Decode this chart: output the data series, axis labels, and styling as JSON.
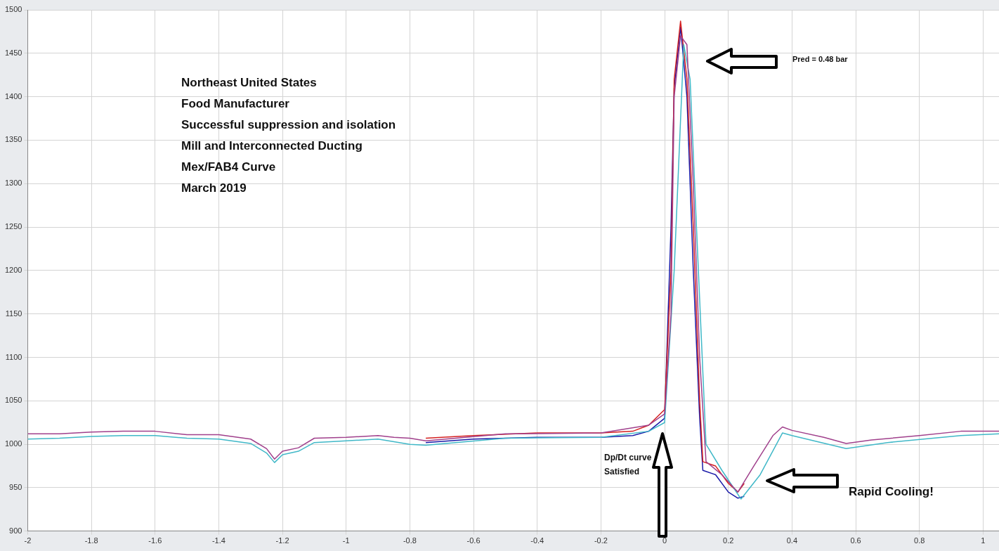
{
  "chart_data": {
    "type": "line",
    "xlim": [
      -2,
      1.05
    ],
    "xticks": [
      -2,
      -1.8,
      -1.6,
      -1.4,
      -1.2,
      -1,
      -0.8,
      -0.6,
      -0.4,
      -0.2,
      0,
      0.2,
      0.4,
      0.6,
      0.8,
      1
    ],
    "ylim": [
      900,
      1500
    ],
    "yticks": [
      900,
      950,
      1000,
      1050,
      1100,
      1150,
      1200,
      1250,
      1300,
      1350,
      1400,
      1450,
      1500
    ],
    "grid": true,
    "legend": false,
    "marker": "none",
    "line_style": "solid",
    "annotations": [
      "Northeast United States",
      "Food Manufacturer",
      "Successful suppression and isolation",
      "Mill and Interconnected Ducting",
      "Mex/FAB4 Curve",
      "March 2019",
      "Pred = 0.48 bar",
      "Dp/Dt curve",
      "Satisfied",
      "Rapid Cooling!"
    ],
    "series": [
      {
        "color": "#a0408c",
        "x": [
          -2,
          -1.9,
          -1.8,
          -1.7,
          -1.6,
          -1.5,
          -1.4,
          -1.3,
          -1.25,
          -1.225,
          -1.2,
          -1.15,
          -1.1,
          -1,
          -0.9,
          -0.85,
          -0.8,
          -0.75,
          -0.5,
          -0.2,
          -0.05,
          0,
          0.02,
          0.03,
          0.05,
          0.07,
          0.09,
          0.11,
          0.13,
          0.18,
          0.23,
          0.28,
          0.34,
          0.37,
          0.4,
          0.5,
          0.57,
          0.65,
          0.8,
          0.93,
          1.05
        ],
        "values": [
          1012,
          1012,
          1014,
          1015,
          1015,
          1011,
          1011,
          1006,
          995,
          983,
          992,
          996,
          1007,
          1008,
          1010,
          1008,
          1007,
          1004,
          1012,
          1013,
          1022,
          1035,
          1150,
          1400,
          1470,
          1460,
          1300,
          1100,
          980,
          965,
          945,
          975,
          1010,
          1020,
          1016,
          1008,
          1001,
          1005,
          1010,
          1015,
          1015
        ]
      },
      {
        "color": "#40b8c8",
        "x": [
          -2,
          -1.9,
          -1.8,
          -1.7,
          -1.6,
          -1.5,
          -1.4,
          -1.3,
          -1.25,
          -1.225,
          -1.2,
          -1.15,
          -1.1,
          -1,
          -0.9,
          -0.85,
          -0.8,
          -0.75,
          -0.5,
          -0.2,
          -0.05,
          0,
          0.03,
          0.06,
          0.08,
          0.1,
          0.13,
          0.18,
          0.24,
          0.3,
          0.37,
          0.4,
          0.57,
          0.7,
          0.93,
          1.05
        ],
        "values": [
          1006,
          1007,
          1009,
          1010,
          1010,
          1007,
          1006,
          1001,
          990,
          979,
          988,
          992,
          1002,
          1004,
          1006,
          1003,
          1000,
          999,
          1007,
          1008,
          1015,
          1025,
          1200,
          1460,
          1420,
          1250,
          1000,
          970,
          937,
          965,
          1013,
          1010,
          995,
          1002,
          1010,
          1012
        ]
      },
      {
        "color": "#d42020",
        "x": [
          -0.75,
          -0.6,
          -0.4,
          -0.2,
          -0.1,
          -0.05,
          0,
          0.02,
          0.03,
          0.05,
          0.07,
          0.09,
          0.11,
          0.12,
          0.16,
          0.2,
          0.23,
          0.25
        ],
        "values": [
          1007,
          1010,
          1013,
          1013,
          1015,
          1022,
          1040,
          1200,
          1420,
          1487,
          1420,
          1250,
          1050,
          980,
          975,
          955,
          945,
          955
        ]
      },
      {
        "color": "#1a1aa8",
        "x": [
          -0.75,
          -0.6,
          -0.4,
          -0.2,
          -0.1,
          -0.05,
          0,
          0.02,
          0.03,
          0.05,
          0.07,
          0.09,
          0.11,
          0.12,
          0.16,
          0.2,
          0.23,
          0.25
        ],
        "values": [
          1002,
          1006,
          1008,
          1008,
          1010,
          1015,
          1030,
          1250,
          1410,
          1480,
          1400,
          1200,
          1030,
          970,
          965,
          945,
          938,
          940
        ]
      }
    ]
  }
}
